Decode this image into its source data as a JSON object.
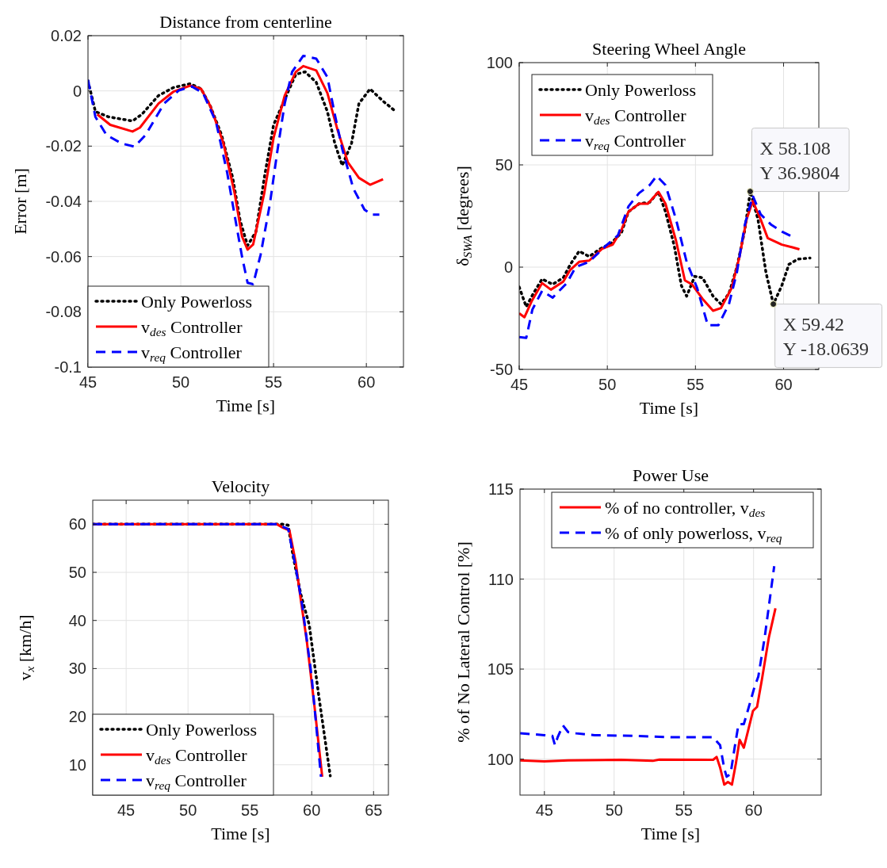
{
  "chart_data": [
    {
      "type": "line",
      "title": "Distance from centerline",
      "xlabel": "Time [s]",
      "ylabel": "Error [m]",
      "xlim": [
        45,
        62
      ],
      "ylim": [
        -0.1,
        0.02
      ],
      "xticks": [
        45,
        50,
        55,
        60
      ],
      "yticks": [
        -0.1,
        -0.08,
        -0.06,
        -0.04,
        -0.02,
        0,
        0.02
      ],
      "grid": true,
      "legend": "bottom left",
      "series": [
        {
          "name": "Only Powerloss",
          "color": "#000000",
          "line_style": "dotted",
          "x": [
            45,
            45.4,
            46.1,
            47.4,
            47.9,
            48.8,
            49.6,
            50.5,
            51.1,
            51.6,
            52.2,
            52.8,
            53.2,
            53.6,
            54.05,
            54.5,
            55.0,
            55.75,
            56.2,
            56.7,
            57.3,
            57.9,
            58.3,
            58.7,
            59.2,
            59.6,
            60.2,
            60.9,
            61.5
          ],
          "values": [
            0.0036,
            -0.0075,
            -0.0094,
            -0.0109,
            -0.0085,
            -0.0017,
            0.0012,
            0.0026,
            0.0007,
            -0.0056,
            -0.016,
            -0.0315,
            -0.047,
            -0.056,
            -0.051,
            -0.0315,
            -0.0123,
            -0.0008,
            0.006,
            0.0069,
            0.0031,
            -0.0075,
            -0.019,
            -0.027,
            -0.019,
            -0.0046,
            0.0007,
            -0.0037,
            -0.007
          ]
        },
        {
          "name": "v$_{des}$ Controller",
          "color": "#ff0000",
          "line_style": "solid",
          "x": [
            45.5,
            46.2,
            47.4,
            47.8,
            48.8,
            49.6,
            50.5,
            51.1,
            51.6,
            52.3,
            52.9,
            53.3,
            53.6,
            53.9,
            54.5,
            55.0,
            55.6,
            56.2,
            56.6,
            57.3,
            57.9,
            58.45,
            59.0,
            59.6,
            60.2,
            60.9
          ],
          "values": [
            -0.0085,
            -0.0123,
            -0.0147,
            -0.0133,
            -0.0046,
            -0.0003,
            0.0019,
            0.0007,
            -0.0056,
            -0.019,
            -0.037,
            -0.0527,
            -0.0575,
            -0.0556,
            -0.037,
            -0.017,
            -0.0017,
            0.0069,
            0.009,
            0.0074,
            -0.0008,
            -0.0142,
            -0.0258,
            -0.0315,
            -0.034,
            -0.032
          ]
        },
        {
          "name": "v$_{req}$ Controller",
          "color": "#0000ff",
          "line_style": "dashed",
          "x": [
            45,
            45.4,
            46.0,
            46.8,
            47.5,
            48.1,
            49.1,
            49.9,
            50.6,
            51.2,
            51.9,
            52.5,
            52.9,
            53.3,
            53.6,
            53.9,
            54.3,
            54.8,
            55.2,
            55.6,
            56.0,
            56.6,
            57.3,
            57.9,
            58.3,
            58.7,
            59.3,
            59.9,
            60.3,
            60.7
          ],
          "values": [
            0.004,
            -0.0094,
            -0.016,
            -0.019,
            -0.0202,
            -0.016,
            -0.0046,
            0.0002,
            0.0016,
            -0.0008,
            -0.0113,
            -0.0296,
            -0.045,
            -0.06,
            -0.0695,
            -0.07,
            -0.0594,
            -0.041,
            -0.022,
            -0.0046,
            0.0069,
            0.0127,
            0.0117,
            0.005,
            -0.0085,
            -0.021,
            -0.0354,
            -0.043,
            -0.0448,
            -0.0448
          ]
        }
      ]
    },
    {
      "type": "line",
      "title": "Steering Wheel Angle",
      "xlabel": "Time [s]",
      "ylabel": "δ$_{SWA}$ [degrees]",
      "xlim": [
        45,
        62
      ],
      "ylim": [
        -50,
        100
      ],
      "xticks": [
        45,
        50,
        55,
        60
      ],
      "yticks": [
        -50,
        0,
        50,
        100
      ],
      "grid": true,
      "legend": "top left",
      "annotations": [
        {
          "text": "X 58.108\nY 36.9804",
          "x": 58.108,
          "y": 36.9804
        },
        {
          "text": "X 59.42\nY -18.0639",
          "x": 59.42,
          "y": -18.0639
        }
      ],
      "series": [
        {
          "name": "Only Powerloss",
          "color": "#000000",
          "line_style": "dotted",
          "x": [
            45,
            45.4,
            45.8,
            46.3,
            46.9,
            47.5,
            47.9,
            48.4,
            48.97,
            49.6,
            50.2,
            50.8,
            51.2,
            51.8,
            52.4,
            52.9,
            53.3,
            53.8,
            54.2,
            54.5,
            54.96,
            55.4,
            56.0,
            56.45,
            56.9,
            57.35,
            57.8,
            58.108,
            58.55,
            59.0,
            59.42,
            59.9,
            60.3,
            60.8,
            61.5
          ],
          "values": [
            -9.7,
            -19.4,
            -12.9,
            -5.8,
            -8.4,
            -5.2,
            1.3,
            7.8,
            5.2,
            9.0,
            11.6,
            16.8,
            27.1,
            31.0,
            31.7,
            36.8,
            27.1,
            10.3,
            -9.0,
            -14.2,
            -4.5,
            -5.2,
            -14.2,
            -18.1,
            -12.9,
            0,
            18.1,
            37.0,
            23.3,
            -2.6,
            -18.1,
            -9.0,
            1.3,
            3.9,
            4.5
          ]
        },
        {
          "name": "v$_{des}$ Controller",
          "color": "#ff0000",
          "line_style": "solid",
          "x": [
            45,
            45.3,
            45.7,
            46.3,
            46.8,
            47.5,
            47.9,
            48.4,
            48.97,
            49.7,
            50.3,
            50.8,
            51.2,
            51.8,
            52.3,
            52.9,
            53.3,
            53.9,
            54.4,
            54.8,
            55.4,
            56.0,
            56.45,
            57.05,
            57.5,
            57.9,
            58.25,
            58.7,
            59.1,
            59.9,
            60.5,
            60.9
          ],
          "values": [
            -22.6,
            -24.5,
            -16.8,
            -7.8,
            -11.0,
            -7.1,
            -1.3,
            2.6,
            3.2,
            9.0,
            11.0,
            18.1,
            27.1,
            31.0,
            31.0,
            36.8,
            31.0,
            12.9,
            -6.5,
            -8.4,
            -15.5,
            -21.3,
            -20.0,
            -10.3,
            5.2,
            23.3,
            32.3,
            23.3,
            14.2,
            11.0,
            9.7,
            8.7
          ]
        },
        {
          "name": "v$_{req}$ Controller",
          "color": "#0000ff",
          "line_style": "dashed",
          "x": [
            45,
            45.4,
            45.75,
            46.3,
            46.9,
            47.7,
            48.2,
            48.97,
            49.9,
            50.6,
            51.2,
            51.8,
            52.4,
            52.8,
            53.3,
            53.9,
            54.5,
            55.1,
            55.7,
            56.3,
            56.9,
            57.35,
            57.8,
            58.25,
            58.7,
            59.3,
            59.9,
            60.5
          ],
          "values": [
            -34.2,
            -34.6,
            -20.7,
            -11.6,
            -14.9,
            -7.8,
            0,
            2.6,
            10.3,
            15.5,
            29.7,
            36.2,
            40.1,
            44.6,
            40.1,
            23.3,
            2.6,
            -10.3,
            -28.4,
            -28.4,
            -18.1,
            -2.6,
            20.7,
            34.9,
            25.8,
            20.7,
            17.4,
            14.9
          ]
        }
      ]
    },
    {
      "type": "line",
      "title": "Velocity",
      "xlabel": "Time [s]",
      "ylabel": "v$_{x}$ [km/h]",
      "xlim": [
        42.3,
        66.2
      ],
      "ylim": [
        3.7,
        65
      ],
      "xticks": [
        45,
        50,
        55,
        60,
        65
      ],
      "yticks": [
        10,
        20,
        30,
        40,
        50,
        60
      ],
      "grid": true,
      "legend": "bottom left",
      "series": [
        {
          "name": "Only Powerloss",
          "color": "#000000",
          "line_style": "dotted",
          "x": [
            42.3,
            57.66,
            58.1,
            58.5,
            59.15,
            59.8,
            60.6,
            61.5
          ],
          "values": [
            60,
            60,
            59.8,
            53.3,
            45.1,
            39.1,
            23.8,
            7.7
          ]
        },
        {
          "name": "v$_{des}$ Controller",
          "color": "#ff0000",
          "line_style": "solid",
          "x": [
            42.3,
            57.2,
            57.66,
            58.2,
            58.7,
            59.1,
            59.6,
            60.2,
            60.85
          ],
          "values": [
            60,
            60,
            59.3,
            58.7,
            52.2,
            44.6,
            35.8,
            22.7,
            7.5
          ]
        },
        {
          "name": "v$_{req}$ Controller",
          "color": "#0000ff",
          "line_style": "dashed",
          "x": [
            42.3,
            57.2,
            58.1,
            58.7,
            59.25,
            60.0,
            60.75
          ],
          "values": [
            60,
            60,
            59.0,
            51.1,
            42.9,
            28.2,
            7.5
          ]
        }
      ]
    },
    {
      "type": "line",
      "title": "Power Use",
      "xlabel": "Time [s]",
      "ylabel": "% of No Lateral Control [%]",
      "xlim": [
        43.25,
        64.85
      ],
      "ylim": [
        98,
        115
      ],
      "xticks": [
        45,
        50,
        55,
        60
      ],
      "yticks": [
        100,
        105,
        110,
        115
      ],
      "grid": true,
      "legend": "top right",
      "series": [
        {
          "name": "% of no controller, v$_{des}$",
          "color": "#ff0000",
          "line_style": "solid",
          "x": [
            43.26,
            45,
            46.7,
            50.5,
            52.77,
            53.24,
            57.1,
            57.35,
            57.6,
            57.9,
            58.16,
            58.45,
            58.73,
            59.0,
            59.3,
            59.58,
            59.96,
            60.25,
            60.6,
            61.1,
            61.57
          ],
          "values": [
            99.93,
            99.87,
            99.93,
            99.96,
            99.9,
            99.97,
            99.96,
            100.12,
            99.53,
            98.58,
            98.73,
            98.58,
            99.75,
            101.07,
            100.63,
            101.5,
            102.68,
            102.9,
            104.43,
            106.77,
            108.38
          ]
        },
        {
          "name": "% of only powerloss, v$_{req}$",
          "color": "#0000ff",
          "line_style": "dashed",
          "x": [
            43.26,
            45,
            45.57,
            45.76,
            45.95,
            46.33,
            46.7,
            47.27,
            48.6,
            51.44,
            54.28,
            57.1,
            57.6,
            57.9,
            58.07,
            58.35,
            58.64,
            58.92,
            59.3,
            59.58,
            60.06,
            60.34,
            60.8,
            61.48
          ],
          "values": [
            101.43,
            101.33,
            101.29,
            100.77,
            101.21,
            101.87,
            101.5,
            101.43,
            101.33,
            101.29,
            101.21,
            101.21,
            100.77,
            99.46,
            99.02,
            99.17,
            100.63,
            101.94,
            101.94,
            102.68,
            103.99,
            104.58,
            106.77,
            110.72
          ]
        }
      ]
    }
  ]
}
